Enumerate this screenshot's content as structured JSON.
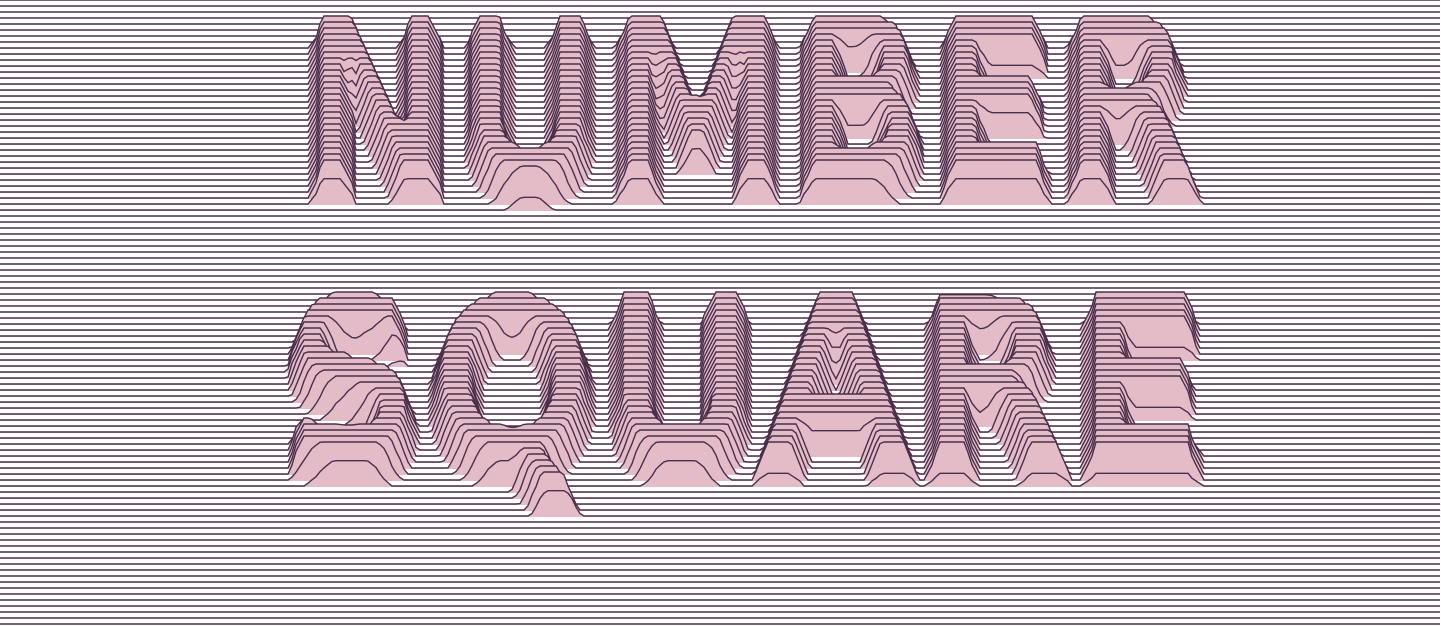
{
  "artwork": {
    "lettering": [
      "NUMBER",
      "SQUARE"
    ],
    "style": "joy-division ridgeline text",
    "colors": {
      "background": "#ffffff",
      "line": "#4a2f4c",
      "fill": "#e3bcc8"
    }
  }
}
